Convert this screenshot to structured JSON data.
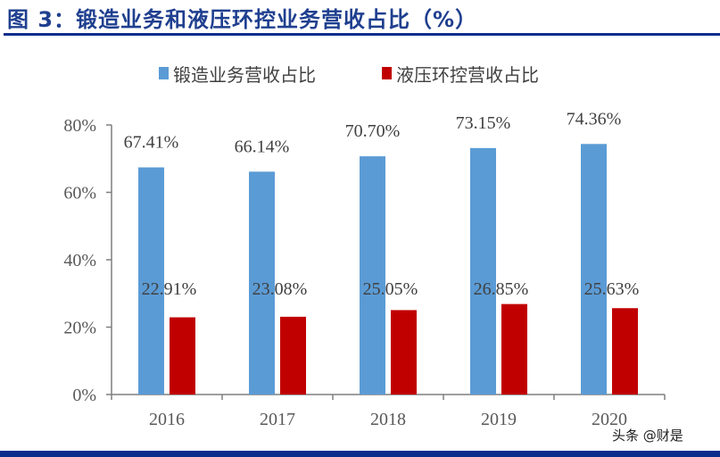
{
  "title": "图 3：锻造业务和液压环控业务营收占比（%）",
  "watermark": "头条 @财是",
  "colors": {
    "forging": "#5b9bd5",
    "hydraulic": "#c00000",
    "accent": "#0a2d8c"
  },
  "chart_data": {
    "type": "bar",
    "title": "图 3：锻造业务和液压环控业务营收占比（%）",
    "categories": [
      "2016",
      "2017",
      "2018",
      "2019",
      "2020"
    ],
    "series": [
      {
        "name": "锻造业务营收占比",
        "values": [
          67.41,
          66.14,
          70.7,
          73.15,
          74.36
        ],
        "labels": [
          "67.41%",
          "66.14%",
          "70.70%",
          "73.15%",
          "74.36%"
        ]
      },
      {
        "name": "液压环控营收占比",
        "values": [
          22.91,
          23.08,
          25.05,
          26.85,
          25.63
        ],
        "labels": [
          "22.91%",
          "23.08%",
          "25.05%",
          "26.85%",
          "25.63%"
        ]
      }
    ],
    "yticks": [
      "0%",
      "20%",
      "40%",
      "60%",
      "80%"
    ],
    "ylim": [
      0,
      80
    ],
    "xlabel": "",
    "ylabel": "",
    "legend": "top-center",
    "grid": false
  }
}
